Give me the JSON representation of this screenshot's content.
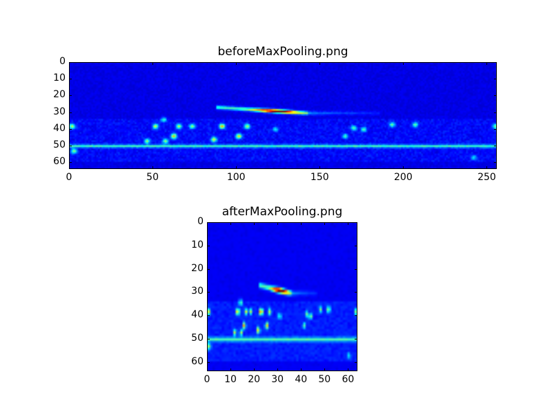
{
  "chart_data": [
    {
      "type": "heatmap",
      "title": "beforeMaxPooling.png",
      "colormap": "jet",
      "image_size": [
        256,
        64
      ],
      "xlim": [
        0,
        256
      ],
      "ylim": [
        64,
        0
      ],
      "xticks": [
        "0",
        "50",
        "100",
        "150",
        "200",
        "250"
      ],
      "yticks": [
        "0",
        "10",
        "20",
        "30",
        "40",
        "50",
        "60"
      ],
      "background_level": 0.08,
      "features": {
        "ridge": {
          "x_start": 88,
          "x_end": 185,
          "y_start": 26.5,
          "y_end": 30,
          "peak_x": 124,
          "peak_y": 29,
          "peak_level": 1.0
        },
        "horizontal_band": {
          "y": 50,
          "level": 0.3
        },
        "blobs": [
          {
            "x": 1,
            "y": 38,
            "level": 0.45
          },
          {
            "x": 2,
            "y": 53,
            "level": 0.4
          },
          {
            "x": 51,
            "y": 38,
            "level": 0.5
          },
          {
            "x": 46,
            "y": 47,
            "level": 0.4
          },
          {
            "x": 57,
            "y": 47,
            "level": 0.4
          },
          {
            "x": 62,
            "y": 44,
            "level": 0.6
          },
          {
            "x": 65,
            "y": 38,
            "level": 0.45
          },
          {
            "x": 73,
            "y": 38,
            "level": 0.4
          },
          {
            "x": 86,
            "y": 46,
            "level": 0.5
          },
          {
            "x": 91,
            "y": 38,
            "level": 0.6
          },
          {
            "x": 101,
            "y": 44,
            "level": 0.55
          },
          {
            "x": 106,
            "y": 38,
            "level": 0.45
          },
          {
            "x": 56,
            "y": 34,
            "level": 0.3
          },
          {
            "x": 123,
            "y": 40,
            "level": 0.25
          },
          {
            "x": 165,
            "y": 44,
            "level": 0.3
          },
          {
            "x": 170,
            "y": 39,
            "level": 0.35
          },
          {
            "x": 176,
            "y": 40,
            "level": 0.3
          },
          {
            "x": 193,
            "y": 37,
            "level": 0.35
          },
          {
            "x": 207,
            "y": 37,
            "level": 0.35
          },
          {
            "x": 255,
            "y": 38,
            "level": 0.35
          },
          {
            "x": 242,
            "y": 57,
            "level": 0.25
          }
        ]
      }
    },
    {
      "type": "heatmap",
      "title": "afterMaxPooling.png",
      "colormap": "jet",
      "image_size": [
        64,
        64
      ],
      "pooling": "max 4x1 of beforeMaxPooling.png",
      "xlim": [
        0,
        64
      ],
      "ylim": [
        64,
        0
      ],
      "xticks": [
        "0",
        "10",
        "20",
        "30",
        "40",
        "50",
        "60"
      ],
      "yticks": [
        "0",
        "10",
        "20",
        "30",
        "40",
        "50",
        "60"
      ]
    }
  ]
}
